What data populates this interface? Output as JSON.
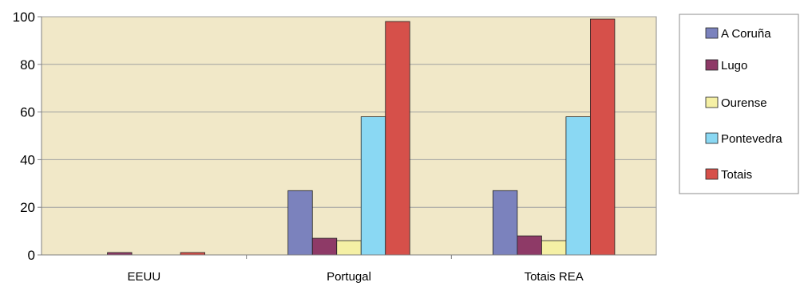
{
  "chart_data": {
    "type": "bar",
    "title": "",
    "xlabel": "",
    "ylabel": "",
    "ylim": [
      0,
      100
    ],
    "yticks": [
      0,
      20,
      40,
      60,
      80,
      100
    ],
    "grid": true,
    "legend_position": "right",
    "categories": [
      "EEUU",
      "Portugal",
      "Totais REA"
    ],
    "series": [
      {
        "name": "A Coruña",
        "color": "#7b82bd",
        "values": [
          0,
          27,
          27
        ]
      },
      {
        "name": "Lugo",
        "color": "#8e3a67",
        "values": [
          1,
          7,
          8
        ]
      },
      {
        "name": "Ourense",
        "color": "#f5f0a5",
        "values": [
          0,
          6,
          6
        ]
      },
      {
        "name": "Pontevedra",
        "color": "#8ad8f3",
        "values": [
          0,
          58,
          58
        ]
      },
      {
        "name": "Totais",
        "color": "#d6504a",
        "values": [
          1,
          98,
          99
        ]
      }
    ],
    "plot_background": "#f1e8c8"
  }
}
